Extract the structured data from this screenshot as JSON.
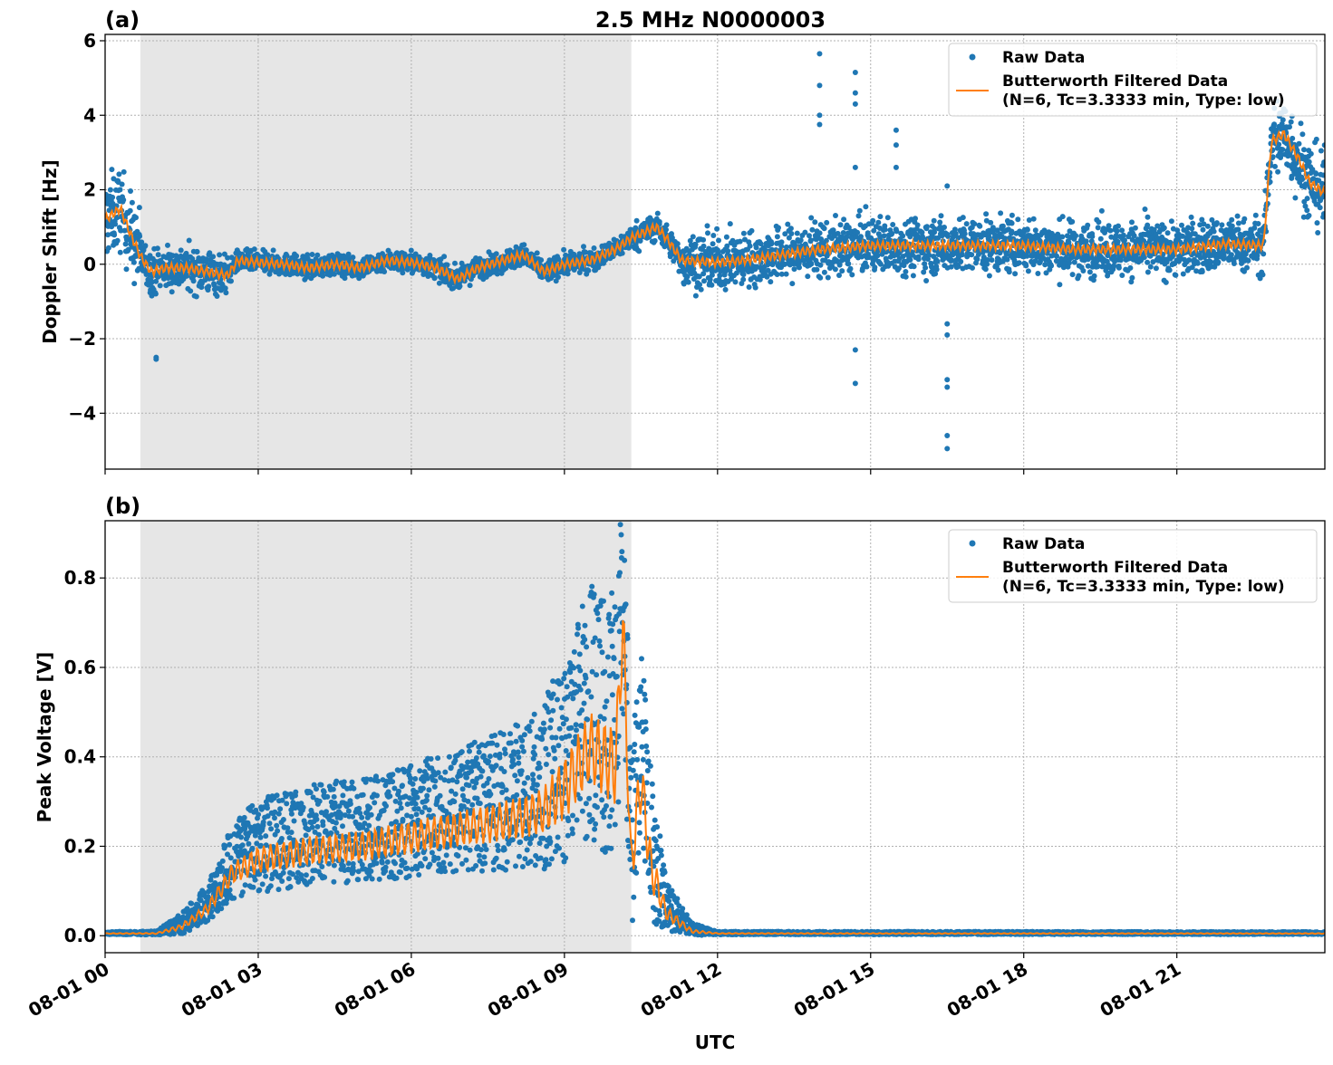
{
  "chart_data": [
    {
      "type": "scatter",
      "panel_label": "(a)",
      "title": "2.5 MHz N0000003",
      "xlabel": "",
      "ylabel": "Doppler Shift [Hz]",
      "xlim_hours": [
        0,
        23.9
      ],
      "ylim": [
        -5.5,
        6.17
      ],
      "yticks": [
        -4,
        -2,
        0,
        2,
        4,
        6
      ],
      "ytick_labels": [
        "−4",
        "−2",
        "0",
        "2",
        "4",
        "6"
      ],
      "grid": true,
      "shaded_region_hours": [
        0.69,
        10.31
      ],
      "legend": {
        "position": "top-right",
        "entries": [
          "Raw Data",
          "Butterworth Filtered Data",
          "(N=6, Tc=3.3333 min, Type: low)"
        ]
      },
      "filtered": {
        "x": [
          0,
          0.3,
          0.5,
          0.7,
          0.9,
          1.2,
          1.6,
          2,
          2.4,
          2.6,
          3,
          3.5,
          4,
          4.5,
          5,
          5.5,
          6,
          6.5,
          6.9,
          7.3,
          7.8,
          8.2,
          8.6,
          9,
          9.5,
          10,
          10.3,
          10.8,
          11,
          11.3,
          12,
          12.5,
          13,
          14,
          15,
          16,
          17,
          18,
          19,
          20,
          21,
          22,
          22.7,
          22.85,
          23.1,
          23.4,
          23.6,
          23.9
        ],
        "y": [
          1.2,
          1.5,
          0.8,
          0.2,
          -0.2,
          -0.1,
          -0.1,
          -0.2,
          -0.3,
          0.1,
          0.05,
          0,
          -0.1,
          0,
          -0.1,
          0.1,
          0.05,
          -0.1,
          -0.4,
          -0.1,
          0.1,
          0.25,
          -0.2,
          0,
          0.1,
          0.4,
          0.7,
          1.0,
          0.7,
          0.1,
          0.05,
          0.1,
          0.2,
          0.4,
          0.5,
          0.5,
          0.5,
          0.5,
          0.4,
          0.4,
          0.4,
          0.55,
          0.5,
          3.3,
          3.5,
          2.8,
          2.2,
          1.9
        ]
      },
      "raw_spread": {
        "x": [
          0,
          0.7,
          0.71,
          2.4,
          2.41,
          10.3,
          10.31,
          11.3,
          11.31,
          22.8,
          22.81,
          23.9
        ],
        "y": [
          1.5,
          1.5,
          0.8,
          0.8,
          0.4,
          0.4,
          0.5,
          0.5,
          1.0,
          1.0,
          1.5,
          1.5
        ]
      },
      "raw_outliers": {
        "x": [
          14.0,
          14.0,
          14.0,
          14.0,
          14.7,
          14.7,
          14.7,
          14.7,
          14.7,
          14.7,
          15.5,
          15.5,
          15.5,
          16.5,
          16.5,
          16.5,
          16.5,
          16.5,
          16.5,
          16.5,
          1.0,
          1.0
        ],
        "y": [
          5.65,
          4.8,
          4.0,
          3.75,
          5.15,
          4.6,
          4.3,
          2.6,
          -2.3,
          -3.2,
          3.6,
          3.2,
          2.6,
          2.1,
          -1.6,
          -1.9,
          -3.1,
          -3.3,
          -4.6,
          -4.95,
          -2.5,
          -2.55
        ]
      }
    },
    {
      "type": "scatter",
      "panel_label": "(b)",
      "title": "",
      "xlabel": "UTC",
      "ylabel": "Peak Voltage [V]",
      "xlim_hours": [
        0,
        23.9
      ],
      "ylim": [
        -0.038,
        0.928
      ],
      "yticks": [
        0,
        0.2,
        0.4,
        0.6,
        0.8
      ],
      "ytick_labels": [
        "0.0",
        "0.2",
        "0.4",
        "0.6",
        "0.8"
      ],
      "xticks_hours": [
        0,
        3,
        6,
        9,
        12,
        15,
        18,
        21
      ],
      "xtick_labels": [
        "08-01 00",
        "08-01 03",
        "08-01 06",
        "08-01 09",
        "08-01 12",
        "08-01 15",
        "08-01 18",
        "08-01 21"
      ],
      "grid": true,
      "shaded_region_hours": [
        0.69,
        10.31
      ],
      "legend": {
        "position": "top-right",
        "entries": [
          "Raw Data",
          "Butterworth Filtered Data",
          "(N=6, Tc=3.3333 min, Type: low)"
        ]
      },
      "filtered": {
        "x": [
          0,
          1,
          1.5,
          2,
          2.5,
          3,
          4,
          5,
          6,
          7,
          8,
          8.6,
          9,
          9.5,
          10,
          10.15,
          10.3,
          10.5,
          10.7,
          11,
          11.5,
          12,
          23.9
        ],
        "y": [
          0.005,
          0.005,
          0.02,
          0.06,
          0.14,
          0.17,
          0.19,
          0.2,
          0.22,
          0.24,
          0.26,
          0.28,
          0.33,
          0.42,
          0.38,
          0.7,
          0.15,
          0.35,
          0.15,
          0.05,
          0.01,
          0.005,
          0.005
        ]
      },
      "raw_spread": {
        "x": [
          0,
          1,
          2,
          2.5,
          3,
          5,
          7,
          8.5,
          9,
          9.5,
          10,
          10.3,
          10.5,
          10.7,
          11,
          11.5,
          12,
          23.9
        ],
        "y": [
          0.004,
          0.006,
          0.06,
          0.12,
          0.15,
          0.17,
          0.2,
          0.25,
          0.35,
          0.4,
          0.45,
          0.3,
          0.35,
          0.25,
          0.08,
          0.02,
          0.005,
          0.004
        ]
      }
    }
  ]
}
